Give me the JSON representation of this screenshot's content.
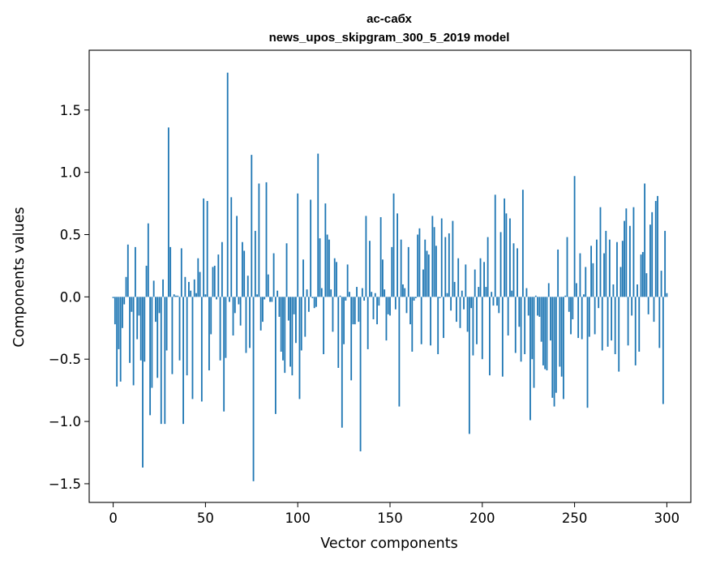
{
  "chart_data": {
    "type": "bar",
    "title": "ас-сабх",
    "subtitle": "news_upos_skipgram_300_5_2019 model",
    "xlabel": "Vector components",
    "ylabel": "Components values",
    "xlim": [
      -13,
      313
    ],
    "ylim": [
      -1.65,
      1.98
    ],
    "xticks": [
      0,
      50,
      100,
      150,
      200,
      250,
      300
    ],
    "yticks": [
      -1.5,
      -1.0,
      -0.5,
      0.0,
      0.5,
      1.0,
      1.5
    ],
    "xtick_labels": [
      "0",
      "50",
      "100",
      "150",
      "200",
      "250",
      "300"
    ],
    "ytick_labels": [
      "−1.5",
      "−1.0",
      "−0.5",
      "0.0",
      "0.5",
      "1.0",
      "1.5"
    ],
    "bar_color": "#1f77b4",
    "grid": false,
    "values": [
      -0.01,
      -0.22,
      -0.72,
      -0.42,
      -0.68,
      -0.25,
      -0.06,
      0.16,
      0.42,
      -0.53,
      -0.12,
      -0.71,
      0.4,
      -0.34,
      -0.15,
      -0.51,
      -1.37,
      -0.52,
      0.25,
      0.59,
      -0.95,
      -0.73,
      0.13,
      -0.2,
      -0.65,
      -0.13,
      -1.02,
      0.14,
      -1.02,
      -0.43,
      1.36,
      0.4,
      -0.62,
      0.02,
      0.01,
      0.01,
      -0.51,
      0.39,
      -1.02,
      0.16,
      -0.63,
      0.12,
      0.05,
      -0.82,
      0.14,
      0.03,
      0.31,
      0.2,
      -0.84,
      0.79,
      0.02,
      0.77,
      -0.59,
      -0.3,
      0.24,
      0.25,
      -0.02,
      0.34,
      -0.51,
      0.44,
      -0.92,
      -0.49,
      1.8,
      -0.04,
      0.8,
      -0.31,
      -0.13,
      0.65,
      -0.06,
      -0.23,
      0.44,
      0.37,
      -0.45,
      0.17,
      -0.41,
      1.14,
      -1.48,
      0.53,
      0.02,
      0.91,
      -0.27,
      -0.2,
      -0.02,
      0.92,
      0.18,
      -0.04,
      -0.04,
      0.35,
      -0.94,
      0.05,
      -0.16,
      -0.44,
      -0.51,
      -0.61,
      0.43,
      -0.19,
      -0.56,
      -0.63,
      -0.14,
      -0.37,
      0.83,
      -0.82,
      -0.43,
      0.3,
      -0.32,
      0.06,
      -0.12,
      0.78,
      -0.01,
      -0.09,
      -0.08,
      1.15,
      0.47,
      0.07,
      -0.46,
      0.75,
      0.5,
      0.46,
      0.06,
      -0.28,
      0.31,
      0.28,
      -0.57,
      0.01,
      -1.05,
      -0.38,
      -0.03,
      0.26,
      0.04,
      -0.67,
      -0.22,
      -0.22,
      0.08,
      -0.2,
      -1.24,
      0.07,
      -0.03,
      0.65,
      -0.42,
      0.45,
      0.04,
      -0.18,
      0.03,
      -0.22,
      -0.07,
      0.64,
      0.3,
      0.06,
      -0.35,
      -0.14,
      -0.15,
      0.4,
      0.83,
      -0.1,
      0.67,
      -0.88,
      0.46,
      0.1,
      0.07,
      -0.13,
      0.4,
      -0.22,
      -0.44,
      -0.03,
      -0.01,
      0.5,
      0.55,
      -0.38,
      0.22,
      0.46,
      0.37,
      0.34,
      -0.39,
      0.65,
      0.56,
      0.41,
      -0.46,
      -0.01,
      0.63,
      -0.33,
      0.48,
      0.03,
      0.51,
      -0.11,
      0.61,
      0.12,
      -0.2,
      0.31,
      -0.25,
      0.05,
      -0.1,
      0.26,
      -0.28,
      -1.1,
      -0.09,
      -0.47,
      0.22,
      -0.38,
      0.08,
      0.31,
      -0.5,
      0.28,
      0.08,
      0.48,
      -0.63,
      0.04,
      -0.07,
      0.82,
      -0.07,
      -0.13,
      0.52,
      -0.64,
      0.79,
      0.67,
      -0.31,
      0.63,
      0.05,
      0.43,
      -0.45,
      0.39,
      -0.24,
      -0.52,
      0.86,
      -0.46,
      0.07,
      -0.15,
      -0.99,
      -0.5,
      -0.73,
      0.01,
      -0.15,
      -0.16,
      -0.36,
      -0.55,
      -0.58,
      -0.59,
      0.11,
      -0.35,
      -0.81,
      -0.88,
      -0.77,
      0.38,
      -0.56,
      -0.64,
      -0.82,
      0.01,
      0.48,
      -0.12,
      -0.3,
      -0.18,
      0.97,
      0.11,
      -0.33,
      0.35,
      -0.34,
      0.02,
      0.24,
      -0.89,
      -0.32,
      0.41,
      0.27,
      -0.3,
      0.46,
      -0.09,
      0.72,
      -0.43,
      0.35,
      0.53,
      -0.4,
      0.46,
      -0.35,
      0.1,
      -0.46,
      0.44,
      -0.6,
      0.24,
      0.45,
      0.61,
      0.71,
      -0.39,
      0.57,
      -0.15,
      0.72,
      -0.55,
      0.1,
      -0.44,
      0.34,
      0.36,
      0.91,
      0.19,
      -0.14,
      0.58,
      0.68,
      -0.2,
      0.77,
      0.81,
      -0.41,
      0.21,
      -0.86,
      0.53,
      0.03
    ]
  }
}
